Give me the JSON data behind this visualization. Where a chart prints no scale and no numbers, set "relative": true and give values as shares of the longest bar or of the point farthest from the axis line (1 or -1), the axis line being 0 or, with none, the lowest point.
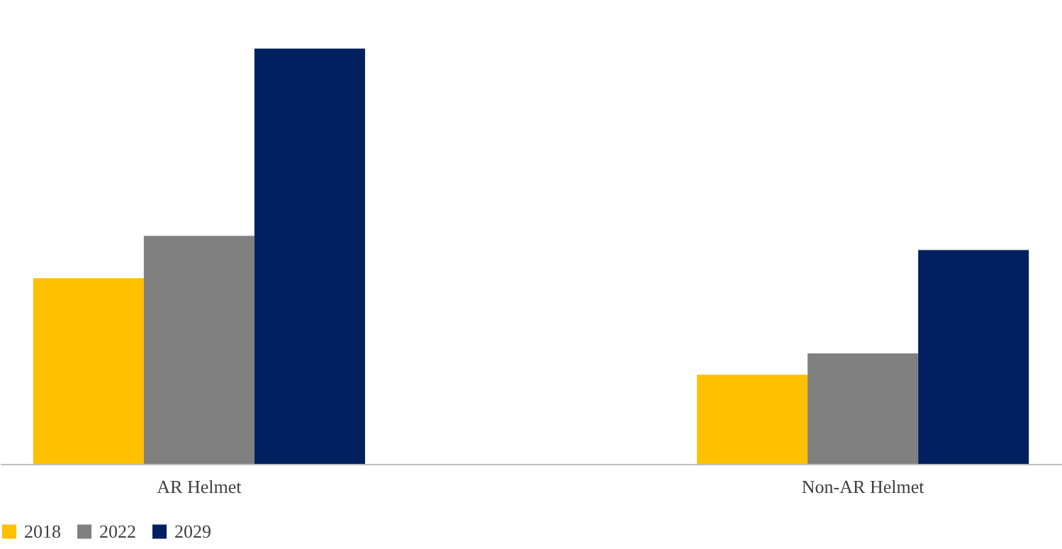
{
  "chart_data": {
    "type": "bar",
    "relative": true,
    "categories": [
      "AR Helmet",
      "Non-AR Helmet"
    ],
    "series": [
      {
        "name": "2018",
        "color": "#ffc000",
        "values": [
          0.447,
          0.215
        ]
      },
      {
        "name": "2022",
        "color": "#808080",
        "values": [
          0.549,
          0.266
        ]
      },
      {
        "name": "2029",
        "color": "#002060",
        "values": [
          1,
          0.515
        ]
      }
    ],
    "legend": "bottom",
    "grid": false
  }
}
